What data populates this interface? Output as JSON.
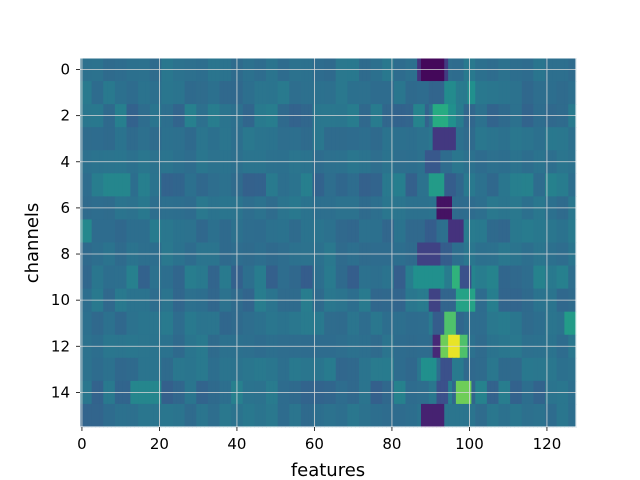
{
  "chart_data": {
    "type": "heatmap",
    "title": "",
    "xlabel": "features",
    "ylabel": "channels",
    "x_range": [
      -0.5,
      127.5
    ],
    "y_range": [
      -0.5,
      15.5
    ],
    "y_inverted": true,
    "x_ticks": [
      0,
      20,
      40,
      60,
      80,
      100,
      120
    ],
    "x_tick_labels": [
      "0",
      "20",
      "40",
      "60",
      "80",
      "100",
      "120"
    ],
    "y_ticks": [
      0,
      2,
      4,
      6,
      8,
      10,
      12,
      14
    ],
    "y_tick_labels": [
      "0",
      "2",
      "4",
      "6",
      "8",
      "10",
      "12",
      "14"
    ],
    "grid": true,
    "colormap": "viridis",
    "n_rows": 16,
    "n_cols": 128,
    "background_value": 0.38,
    "row_noise_amplitude": [
      0.03,
      0.04,
      0.06,
      0.03,
      0.02,
      0.07,
      0.03,
      0.04,
      0.03,
      0.08,
      0.05,
      0.04,
      0.03,
      0.04,
      0.07,
      0.03
    ],
    "features": [
      {
        "row": 0,
        "col_start": 88,
        "col_end": 93,
        "value": 0.02
      },
      {
        "row": 0,
        "col_start": 87,
        "col_end": 87,
        "value": 0.15
      },
      {
        "row": 0,
        "col_start": 94,
        "col_end": 94,
        "value": 0.18
      },
      {
        "row": 1,
        "col_start": 90,
        "col_end": 93,
        "value": 0.33
      },
      {
        "row": 1,
        "col_start": 94,
        "col_end": 96,
        "value": 0.48
      },
      {
        "row": 1,
        "col_start": 100,
        "col_end": 101,
        "value": 0.5
      },
      {
        "row": 2,
        "col_start": 91,
        "col_end": 94,
        "value": 0.62
      },
      {
        "row": 2,
        "col_start": 95,
        "col_end": 96,
        "value": 0.5
      },
      {
        "row": 2,
        "col_start": 86,
        "col_end": 88,
        "value": 0.45
      },
      {
        "row": 3,
        "col_start": 91,
        "col_end": 96,
        "value": 0.17
      },
      {
        "row": 4,
        "col_start": 89,
        "col_end": 92,
        "value": 0.28
      },
      {
        "row": 5,
        "col_start": 90,
        "col_end": 93,
        "value": 0.55
      },
      {
        "row": 5,
        "col_start": 94,
        "col_end": 96,
        "value": 0.3
      },
      {
        "row": 5,
        "col_start": 6,
        "col_end": 12,
        "value": 0.46
      },
      {
        "row": 6,
        "col_start": 92,
        "col_end": 95,
        "value": 0.05
      },
      {
        "row": 7,
        "col_start": 89,
        "col_end": 91,
        "value": 0.3
      },
      {
        "row": 7,
        "col_start": 95,
        "col_end": 98,
        "value": 0.15
      },
      {
        "row": 7,
        "col_start": 0,
        "col_end": 2,
        "value": 0.47
      },
      {
        "row": 8,
        "col_start": 87,
        "col_end": 92,
        "value": 0.2
      },
      {
        "row": 8,
        "col_start": 93,
        "col_end": 95,
        "value": 0.3
      },
      {
        "row": 9,
        "col_start": 86,
        "col_end": 93,
        "value": 0.5
      },
      {
        "row": 9,
        "col_start": 96,
        "col_end": 97,
        "value": 0.65
      },
      {
        "row": 9,
        "col_start": 98,
        "col_end": 100,
        "value": 0.25
      },
      {
        "row": 10,
        "col_start": 90,
        "col_end": 92,
        "value": 0.2
      },
      {
        "row": 10,
        "col_start": 97,
        "col_end": 101,
        "value": 0.58
      },
      {
        "row": 11,
        "col_start": 94,
        "col_end": 96,
        "value": 0.72
      },
      {
        "row": 11,
        "col_start": 91,
        "col_end": 93,
        "value": 0.3
      },
      {
        "row": 11,
        "col_start": 125,
        "col_end": 127,
        "value": 0.55
      },
      {
        "row": 12,
        "col_start": 95,
        "col_end": 97,
        "value": 0.97
      },
      {
        "row": 12,
        "col_start": 93,
        "col_end": 94,
        "value": 0.78
      },
      {
        "row": 12,
        "col_start": 98,
        "col_end": 99,
        "value": 0.72
      },
      {
        "row": 12,
        "col_start": 91,
        "col_end": 92,
        "value": 0.12
      },
      {
        "row": 13,
        "col_start": 88,
        "col_end": 91,
        "value": 0.5
      },
      {
        "row": 13,
        "col_start": 93,
        "col_end": 95,
        "value": 0.25
      },
      {
        "row": 14,
        "col_start": 97,
        "col_end": 100,
        "value": 0.78
      },
      {
        "row": 14,
        "col_start": 92,
        "col_end": 94,
        "value": 0.25
      },
      {
        "row": 14,
        "col_start": 13,
        "col_end": 20,
        "value": 0.46
      },
      {
        "row": 15,
        "col_start": 88,
        "col_end": 93,
        "value": 0.1
      },
      {
        "row": 15,
        "col_start": 0,
        "col_end": 5,
        "value": 0.33
      }
    ]
  }
}
